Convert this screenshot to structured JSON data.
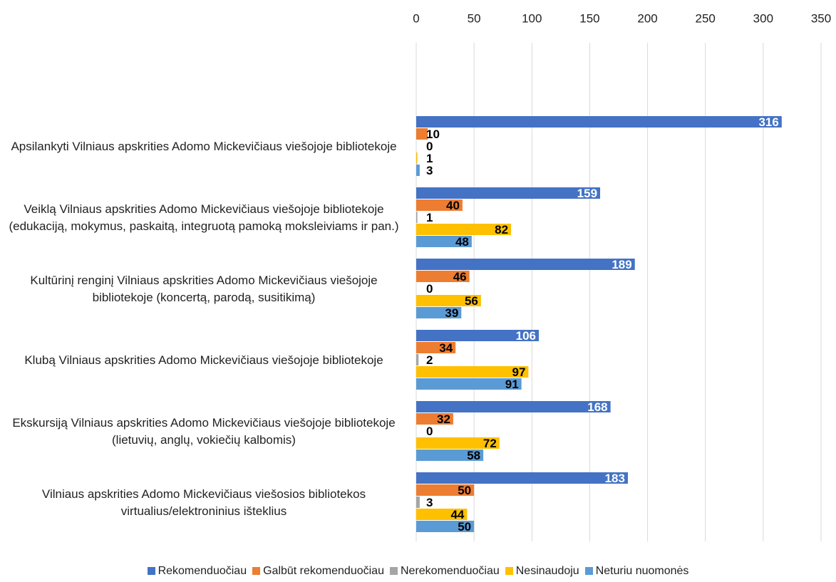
{
  "chart_data": {
    "type": "bar",
    "orientation": "horizontal",
    "categories": [
      "Apsilankyti Vilniaus apskrities Adomo Mickevičiaus viešojoje bibliotekoje",
      "Veiklą Vilniaus apskrities Adomo Mickevičiaus viešojoje bibliotekoje (edukaciją, mokymus,  paskaitą, integruotą pamoką moksleiviams ir pan.)",
      "Kultūrinį renginį Vilniaus apskrities Adomo Mickevičiaus viešojoje bibliotekoje (koncertą, parodą, susitikimą)",
      "Klubą Vilniaus apskrities Adomo Mickevičiaus viešojoje bibliotekoje",
      "Ekskursiją Vilniaus apskrities Adomo Mickevičiaus viešojoje bibliotekoje (lietuvių, anglų, vokiečių kalbomis)",
      "Vilniaus apskrities Adomo Mickevičiaus viešosios bibliotekos virtualius/elektroninius išteklius"
    ],
    "series": [
      {
        "name": "Rekomenduočiau",
        "color": "#4472c4",
        "values": [
          316,
          159,
          189,
          106,
          168,
          183
        ]
      },
      {
        "name": "Galbūt rekomenduočiau",
        "color": "#ed7d31",
        "values": [
          10,
          40,
          46,
          34,
          32,
          50
        ]
      },
      {
        "name": "Nerekomenduočiau",
        "color": "#a5a5a5",
        "values": [
          0,
          1,
          0,
          2,
          0,
          3
        ]
      },
      {
        "name": "Nesinaudoju",
        "color": "#ffc000",
        "values": [
          1,
          82,
          56,
          97,
          72,
          44
        ]
      },
      {
        "name": "Neturiu nuomonės",
        "color": "#5b9bd5",
        "values": [
          3,
          48,
          39,
          91,
          58,
          50
        ]
      }
    ],
    "xlim": [
      0,
      350
    ],
    "xticks": [
      0,
      50,
      100,
      150,
      200,
      250,
      300,
      350
    ],
    "grid": true,
    "legend": "bottom"
  }
}
